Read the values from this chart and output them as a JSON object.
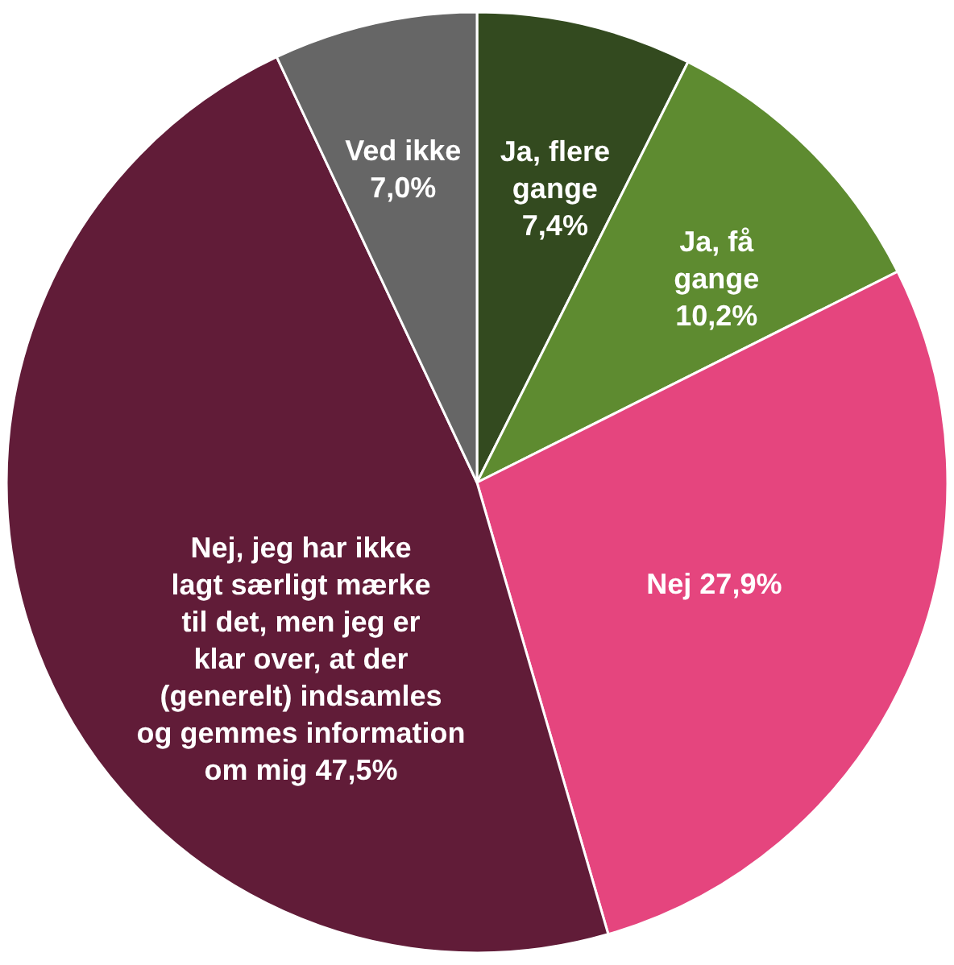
{
  "chart_data": {
    "type": "pie",
    "categories": [
      "Ja, flere gange",
      "Ja, få gange",
      "Nej",
      "Nej, jeg har ikke lagt særligt mærke til det, men jeg er klar over, at der (generelt) indsamles og  gemmes information om mig",
      "Ved ikke"
    ],
    "values": [
      7.4,
      10.2,
      27.9,
      47.5,
      7.0
    ],
    "value_labels": [
      "7,4%",
      "10,2%",
      "27,9%",
      "47,5%",
      "7,0%"
    ],
    "colors": [
      "#334a1f",
      "#5e8b30",
      "#e5457e",
      "#611c38",
      "#666666"
    ]
  }
}
